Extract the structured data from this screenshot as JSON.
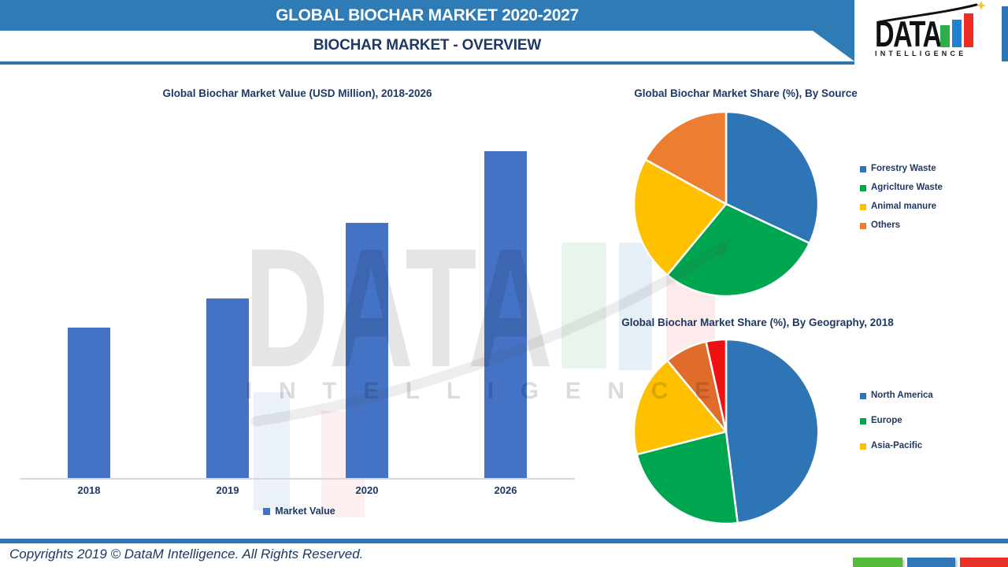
{
  "header": {
    "title": "GLOBAL BIOCHAR MARKET 2020-2027",
    "subtitle": "BIOCHAR MARKET - OVERVIEW"
  },
  "logo": {
    "text": "DATA",
    "subtext": "INTELLIGENCE",
    "bar_colors": [
      "#2EAE4A",
      "#1D82D2",
      "#EE2C24"
    ],
    "star_color": "#F6C344"
  },
  "watermark": {
    "text": "DATA",
    "subtext": "INTELLIGENCE"
  },
  "colors": {
    "header_bar": "#2F7BB6",
    "navy_text": "#1F3864",
    "divider": "#2E75B6",
    "axis_line": "#D9D9D9"
  },
  "footer": {
    "copyright": "Copyrights 2019 © DataM Intelligence. All Rights Reserved.",
    "bar_colors": [
      "#55B93C",
      "#3077B6",
      "#E93128"
    ]
  },
  "chart_data": [
    {
      "type": "bar",
      "title": "Global Biochar Market Value (USD Million), 2018-2026",
      "categories": [
        "2018",
        "2019",
        "2020",
        "2026"
      ],
      "series": [
        {
          "name": "Market Value",
          "values_pct_of_max": [
            46,
            55,
            78,
            100
          ]
        }
      ],
      "bar_color": "#4472C4",
      "xlabel": "",
      "ylabel": "",
      "y_axis_labels_shown": false,
      "grid": false,
      "legend_position": "bottom"
    },
    {
      "type": "pie",
      "title": "Global Biochar Market Share (%), By Source",
      "labels": [
        "Forestry Waste",
        "Agriclture Waste",
        "Animal manure",
        "Others"
      ],
      "values_pct": [
        32,
        29,
        22,
        17
      ],
      "colors": [
        "#2E75B6",
        "#00A550",
        "#FFC000",
        "#ED7D31"
      ],
      "legend": [
        "Forestry Waste",
        "Agriclture Waste",
        "Animal manure",
        "Others"
      ],
      "legend_position": "right",
      "start_angle_deg": 0,
      "direction": "clockwise"
    },
    {
      "type": "pie",
      "title": "Global Biochar Market Share (%), By Geography, 2018",
      "labels": [
        "North America",
        "Europe",
        "Asia-Pacific",
        "",
        ""
      ],
      "values_pct": [
        48,
        23,
        18,
        7.5,
        3.5
      ],
      "colors": [
        "#2E75B6",
        "#00A550",
        "#FFC000",
        "#E06C2B",
        "#EF1012"
      ],
      "legend": [
        "North America",
        "Europe",
        "Asia-Pacific"
      ],
      "legend_position": "right",
      "start_angle_deg": 0,
      "direction": "clockwise"
    }
  ]
}
